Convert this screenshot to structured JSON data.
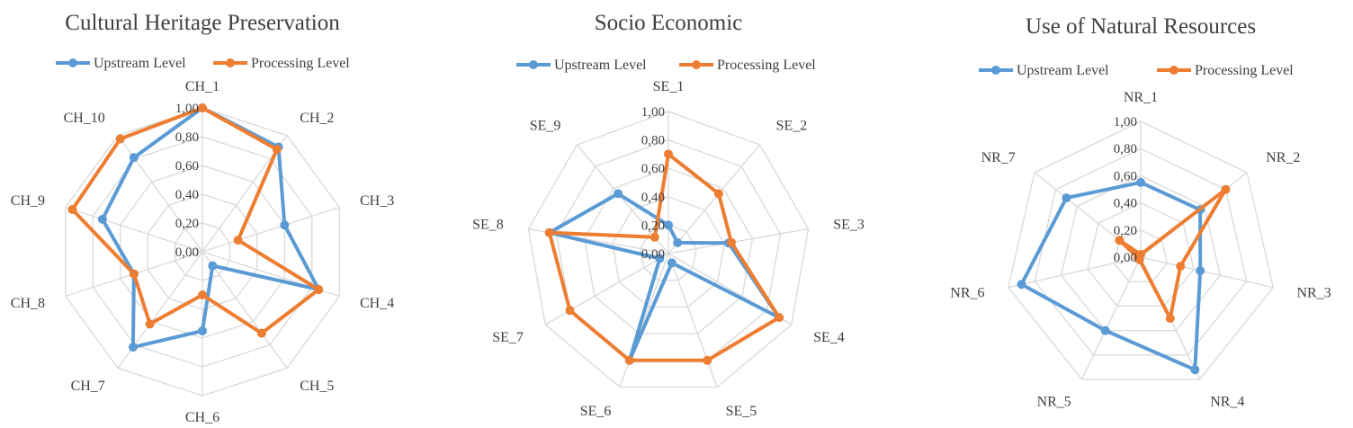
{
  "chart_data": [
    {
      "type": "radar",
      "title": "Cultural Heritage Preservation",
      "categories": [
        "CH_1",
        "CH_2",
        "CH_3",
        "CH_4",
        "CH_5",
        "CH_6",
        "CH_7",
        "CH_8",
        "CH_9",
        "CH_10"
      ],
      "tick_labels": [
        "0,00",
        "0,20",
        "0,40",
        "0,60",
        "0,80",
        "1,00"
      ],
      "rlim": [
        0,
        1
      ],
      "legend": "top",
      "series": [
        {
          "name": "Upstream Level",
          "color": "#5b9bd5",
          "values": [
            1.0,
            0.9,
            0.6,
            0.85,
            0.12,
            0.55,
            0.82,
            0.5,
            0.73,
            0.81
          ]
        },
        {
          "name": "Processing Level",
          "color": "#ed7d31",
          "values": [
            1.0,
            0.88,
            0.26,
            0.85,
            0.7,
            0.3,
            0.62,
            0.5,
            0.95,
            0.97
          ]
        }
      ]
    },
    {
      "type": "radar",
      "title": "Socio Economic",
      "categories": [
        "SE_1",
        "SE_2",
        "SE_3",
        "SE_4",
        "SE_5",
        "SE_6",
        "SE_7",
        "SE_8",
        "SE_9"
      ],
      "tick_labels": [
        "0,00",
        "0,20",
        "0,40",
        "0,60",
        "0,80",
        "1,00"
      ],
      "rlim": [
        0,
        1
      ],
      "legend": "top",
      "series": [
        {
          "name": "Upstream Level",
          "color": "#5b9bd5",
          "values": [
            0.2,
            0.1,
            0.43,
            0.9,
            0.07,
            0.8,
            0.07,
            0.85,
            0.55
          ]
        },
        {
          "name": "Processing Level",
          "color": "#ed7d31",
          "values": [
            0.7,
            0.55,
            0.45,
            0.9,
            0.8,
            0.8,
            0.8,
            0.85,
            0.15
          ]
        }
      ]
    },
    {
      "type": "radar",
      "title": "Use of Natural Resources",
      "categories": [
        "NR_1",
        "NR_2",
        "NR_3",
        "NR_4",
        "NR_5",
        "NR_6",
        "NR_7"
      ],
      "tick_labels": [
        "0,00",
        "0,20",
        "0,40",
        "0,60",
        "0,80",
        "1,00"
      ],
      "rlim": [
        0,
        1
      ],
      "legend": "top",
      "series": [
        {
          "name": "Upstream Level",
          "color": "#5b9bd5",
          "values": [
            0.55,
            0.56,
            0.45,
            0.92,
            0.6,
            0.9,
            0.7
          ]
        },
        {
          "name": "Processing Level",
          "color": "#ed7d31",
          "values": [
            0.02,
            0.8,
            0.3,
            0.5,
            0.02,
            0.02,
            0.2
          ]
        }
      ]
    }
  ]
}
